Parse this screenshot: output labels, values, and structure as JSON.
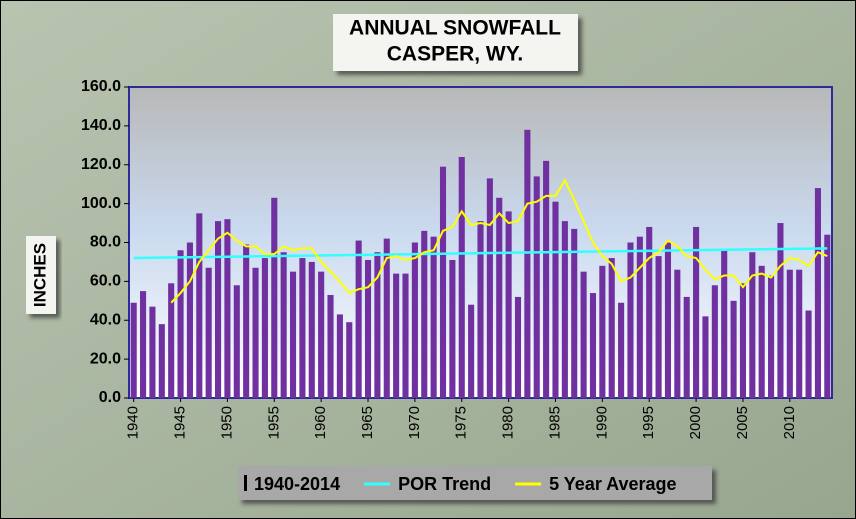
{
  "chart_data": {
    "type": "bar",
    "title": "ANNUAL SNOWFALL",
    "subtitle": "CASPER, WY.",
    "y_label": "INCHES",
    "x": [
      1940,
      1941,
      1942,
      1943,
      1944,
      1945,
      1946,
      1947,
      1948,
      1949,
      1950,
      1951,
      1952,
      1953,
      1954,
      1955,
      1956,
      1957,
      1958,
      1959,
      1960,
      1961,
      1962,
      1963,
      1964,
      1965,
      1966,
      1967,
      1968,
      1969,
      1970,
      1971,
      1972,
      1973,
      1974,
      1975,
      1976,
      1977,
      1978,
      1979,
      1980,
      1981,
      1982,
      1983,
      1984,
      1985,
      1986,
      1987,
      1988,
      1989,
      1990,
      1991,
      1992,
      1993,
      1994,
      1995,
      1996,
      1997,
      1998,
      1999,
      2000,
      2001,
      2002,
      2003,
      2004,
      2005,
      2006,
      2007,
      2008,
      2009,
      2010,
      2011,
      2012,
      2013,
      2014
    ],
    "xlim": [
      1939.5,
      2014.5
    ],
    "xticks": [
      1940,
      1945,
      1950,
      1955,
      1960,
      1965,
      1970,
      1975,
      1980,
      1985,
      1990,
      1995,
      2000,
      2005,
      2010
    ],
    "ylim": [
      0,
      160
    ],
    "yticks": [
      {
        "value": 0,
        "label": "0.0"
      },
      {
        "value": 20,
        "label": "20.0"
      },
      {
        "value": 40,
        "label": "40.0"
      },
      {
        "value": 60,
        "label": "60.0"
      },
      {
        "value": 80,
        "label": "80.0"
      },
      {
        "value": 100,
        "label": "100.0"
      },
      {
        "value": 120,
        "label": "120.0"
      },
      {
        "value": 140,
        "label": "140.0"
      },
      {
        "value": 160,
        "label": "160.0"
      }
    ],
    "series": [
      {
        "name": "1940-2014",
        "type": "bar",
        "color": "#7030a0",
        "values": [
          49,
          55,
          47,
          38,
          59,
          76,
          80,
          95,
          67,
          91,
          92,
          58,
          79,
          67,
          72,
          103,
          75,
          65,
          72,
          70,
          65,
          53,
          43,
          39,
          81,
          71,
          75,
          82,
          64,
          64,
          80,
          86,
          83,
          119,
          71,
          124,
          48,
          91,
          113,
          103,
          96,
          52,
          138,
          114,
          122,
          101,
          91,
          87,
          65,
          54,
          68,
          72,
          49,
          80,
          83,
          88,
          73,
          80,
          66,
          52,
          88,
          42,
          58,
          76,
          50,
          59,
          75,
          68,
          63,
          90,
          66,
          66,
          45,
          108,
          84
        ]
      },
      {
        "name": "POR Trend",
        "type": "line",
        "color": "#33ffff",
        "x": [
          1940,
          2014
        ],
        "values": [
          72,
          77
        ]
      },
      {
        "name": "5 Year Average",
        "type": "line",
        "color": "#ffff00",
        "values": [
          null,
          null,
          null,
          null,
          49,
          54,
          60,
          70,
          76,
          82,
          85,
          81,
          78,
          78,
          74,
          74,
          78,
          76,
          77,
          77,
          70,
          65,
          60,
          54,
          56,
          57,
          62,
          72,
          73,
          71,
          72,
          75,
          76,
          86,
          88,
          96,
          89,
          90,
          89,
          95,
          90,
          91,
          100,
          101,
          104,
          104,
          112,
          102,
          91,
          80,
          73,
          69,
          60,
          62,
          67,
          72,
          75,
          81,
          78,
          73,
          72,
          66,
          61,
          63,
          63,
          57,
          63,
          64,
          62,
          68,
          72,
          71,
          68,
          75,
          73
        ]
      }
    ]
  }
}
